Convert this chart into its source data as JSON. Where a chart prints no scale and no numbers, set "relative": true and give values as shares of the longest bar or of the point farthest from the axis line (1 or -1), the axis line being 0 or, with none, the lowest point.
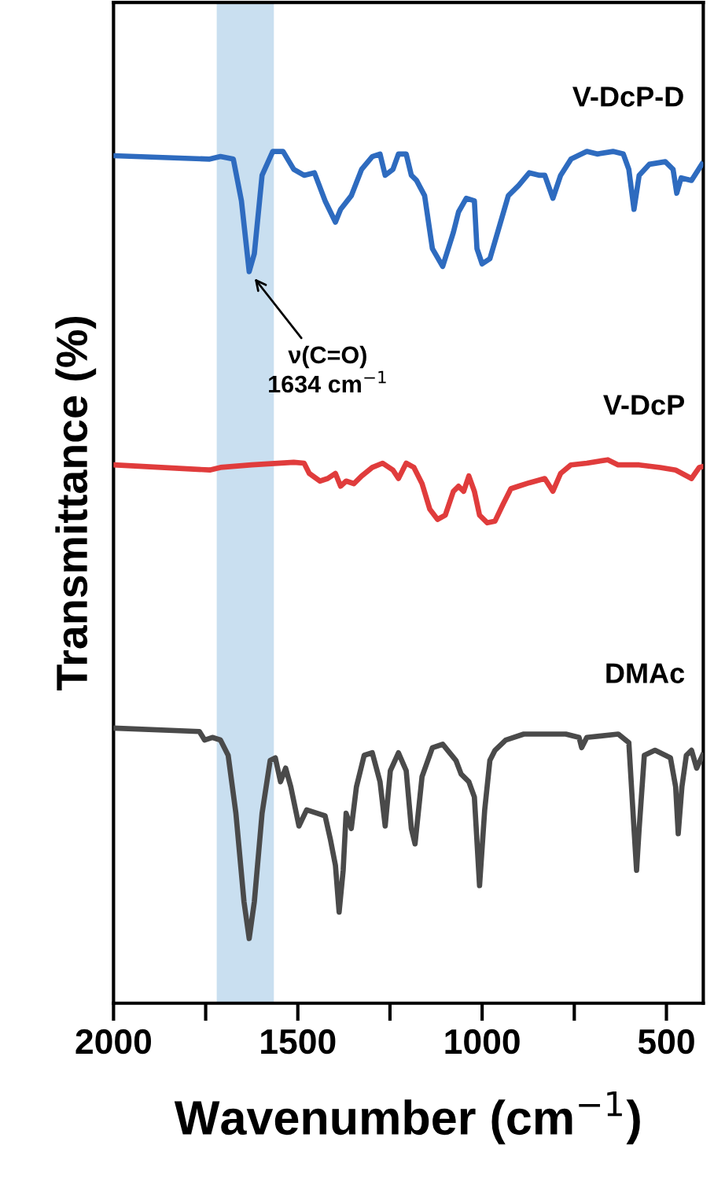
{
  "chart_data": {
    "type": "line",
    "relative": true,
    "xlabel": "Wavenumber (cm$^{−1}$)",
    "ylabel": "Transmittance (%)",
    "xlim": [
      2000,
      400
    ],
    "xticks": [
      2000,
      {
        "value": 1750,
        "label": null
      },
      1500,
      {
        "value": 1250,
        "label": null
      },
      1000,
      {
        "value": 750,
        "label": null
      },
      500
    ],
    "grid": false,
    "legend": false,
    "marker": "none",
    "line_style": "solid",
    "bands": [
      {
        "axis": "x",
        "from": 1720,
        "to": 1565,
        "color": "#c9dff0"
      }
    ],
    "annotations": [
      {
        "text": "ν(C=O)\n1634 cm$^{−1}$",
        "x": 1632,
        "y": 0.859
      }
    ],
    "series": [
      {
        "name": "V-DcP-D",
        "color": "#2e6bbf",
        "x": [
          2000,
          1739,
          1710,
          1675,
          1653,
          1632,
          1618,
          1597,
          1568,
          1540,
          1511,
          1483,
          1455,
          1426,
          1398,
          1384,
          1355,
          1327,
          1298,
          1277,
          1263,
          1242,
          1227,
          1206,
          1192,
          1178,
          1156,
          1135,
          1107,
          1078,
          1064,
          1043,
          1021,
          1014,
          1000,
          979,
          958,
          929,
          901,
          872,
          844,
          830,
          808,
          787,
          759,
          716,
          688,
          645,
          617,
          602,
          588,
          574,
          546,
          503,
          482,
          472,
          460,
          432,
          404
        ],
        "values": [
          0.995,
          0.991,
          0.994,
          0.991,
          0.942,
          0.859,
          0.88,
          0.972,
          1.0,
          1.0,
          0.979,
          0.972,
          0.975,
          0.942,
          0.917,
          0.932,
          0.948,
          0.979,
          0.994,
          0.997,
          0.972,
          0.979,
          0.997,
          0.997,
          0.972,
          0.966,
          0.948,
          0.886,
          0.865,
          0.905,
          0.929,
          0.945,
          0.942,
          0.886,
          0.868,
          0.874,
          0.905,
          0.948,
          0.96,
          0.975,
          0.972,
          0.972,
          0.945,
          0.972,
          0.991,
          1.0,
          0.997,
          1.0,
          0.997,
          0.979,
          0.932,
          0.972,
          0.985,
          0.988,
          0.979,
          0.951,
          0.969,
          0.966,
          0.985
        ]
      },
      {
        "name": "V-DcP",
        "color": "#e03c3c",
        "x": [
          2000,
          1739,
          1710,
          1625,
          1511,
          1483,
          1469,
          1440,
          1419,
          1398,
          1384,
          1369,
          1348,
          1327,
          1298,
          1270,
          1242,
          1227,
          1206,
          1185,
          1163,
          1142,
          1121,
          1100,
          1078,
          1064,
          1050,
          1036,
          1021,
          1007,
          986,
          965,
          943,
          922,
          901,
          872,
          830,
          808,
          787,
          759,
          716,
          659,
          631,
          574,
          517,
          475,
          432,
          411,
          402
        ],
        "values": [
          0.632,
          0.626,
          0.629,
          0.632,
          0.635,
          0.634,
          0.622,
          0.613,
          0.616,
          0.622,
          0.607,
          0.613,
          0.61,
          0.619,
          0.629,
          0.634,
          0.626,
          0.616,
          0.634,
          0.629,
          0.61,
          0.58,
          0.568,
          0.573,
          0.601,
          0.607,
          0.601,
          0.619,
          0.601,
          0.573,
          0.564,
          0.566,
          0.586,
          0.604,
          0.607,
          0.611,
          0.616,
          0.601,
          0.622,
          0.632,
          0.634,
          0.638,
          0.632,
          0.632,
          0.629,
          0.626,
          0.616,
          0.629,
          0.63
        ]
      },
      {
        "name": "DMAc",
        "color": "#4a4a4a",
        "x": [
          2000,
          1767,
          1753,
          1732,
          1710,
          1689,
          1668,
          1646,
          1632,
          1618,
          1597,
          1575,
          1561,
          1547,
          1533,
          1519,
          1497,
          1476,
          1448,
          1426,
          1412,
          1398,
          1388,
          1377,
          1369,
          1355,
          1341,
          1320,
          1298,
          1277,
          1263,
          1249,
          1227,
          1206,
          1192,
          1182,
          1163,
          1135,
          1107,
          1071,
          1057,
          1036,
          1021,
          1007,
          993,
          979,
          965,
          936,
          887,
          773,
          737,
          730,
          716,
          631,
          602,
          588,
          581,
          574,
          560,
          531,
          489,
          475,
          468,
          458,
          446,
          432,
          418,
          402
        ],
        "values": [
          0.323,
          0.319,
          0.309,
          0.312,
          0.309,
          0.291,
          0.223,
          0.119,
          0.076,
          0.119,
          0.223,
          0.285,
          0.288,
          0.26,
          0.276,
          0.254,
          0.208,
          0.227,
          0.223,
          0.22,
          0.193,
          0.162,
          0.107,
          0.156,
          0.223,
          0.205,
          0.254,
          0.291,
          0.294,
          0.26,
          0.208,
          0.273,
          0.294,
          0.273,
          0.205,
          0.187,
          0.266,
          0.3,
          0.304,
          0.285,
          0.269,
          0.26,
          0.242,
          0.138,
          0.227,
          0.285,
          0.297,
          0.309,
          0.316,
          0.316,
          0.312,
          0.3,
          0.312,
          0.316,
          0.306,
          0.205,
          0.156,
          0.205,
          0.291,
          0.297,
          0.288,
          0.254,
          0.199,
          0.254,
          0.291,
          0.297,
          0.276,
          0.291
        ]
      }
    ]
  }
}
